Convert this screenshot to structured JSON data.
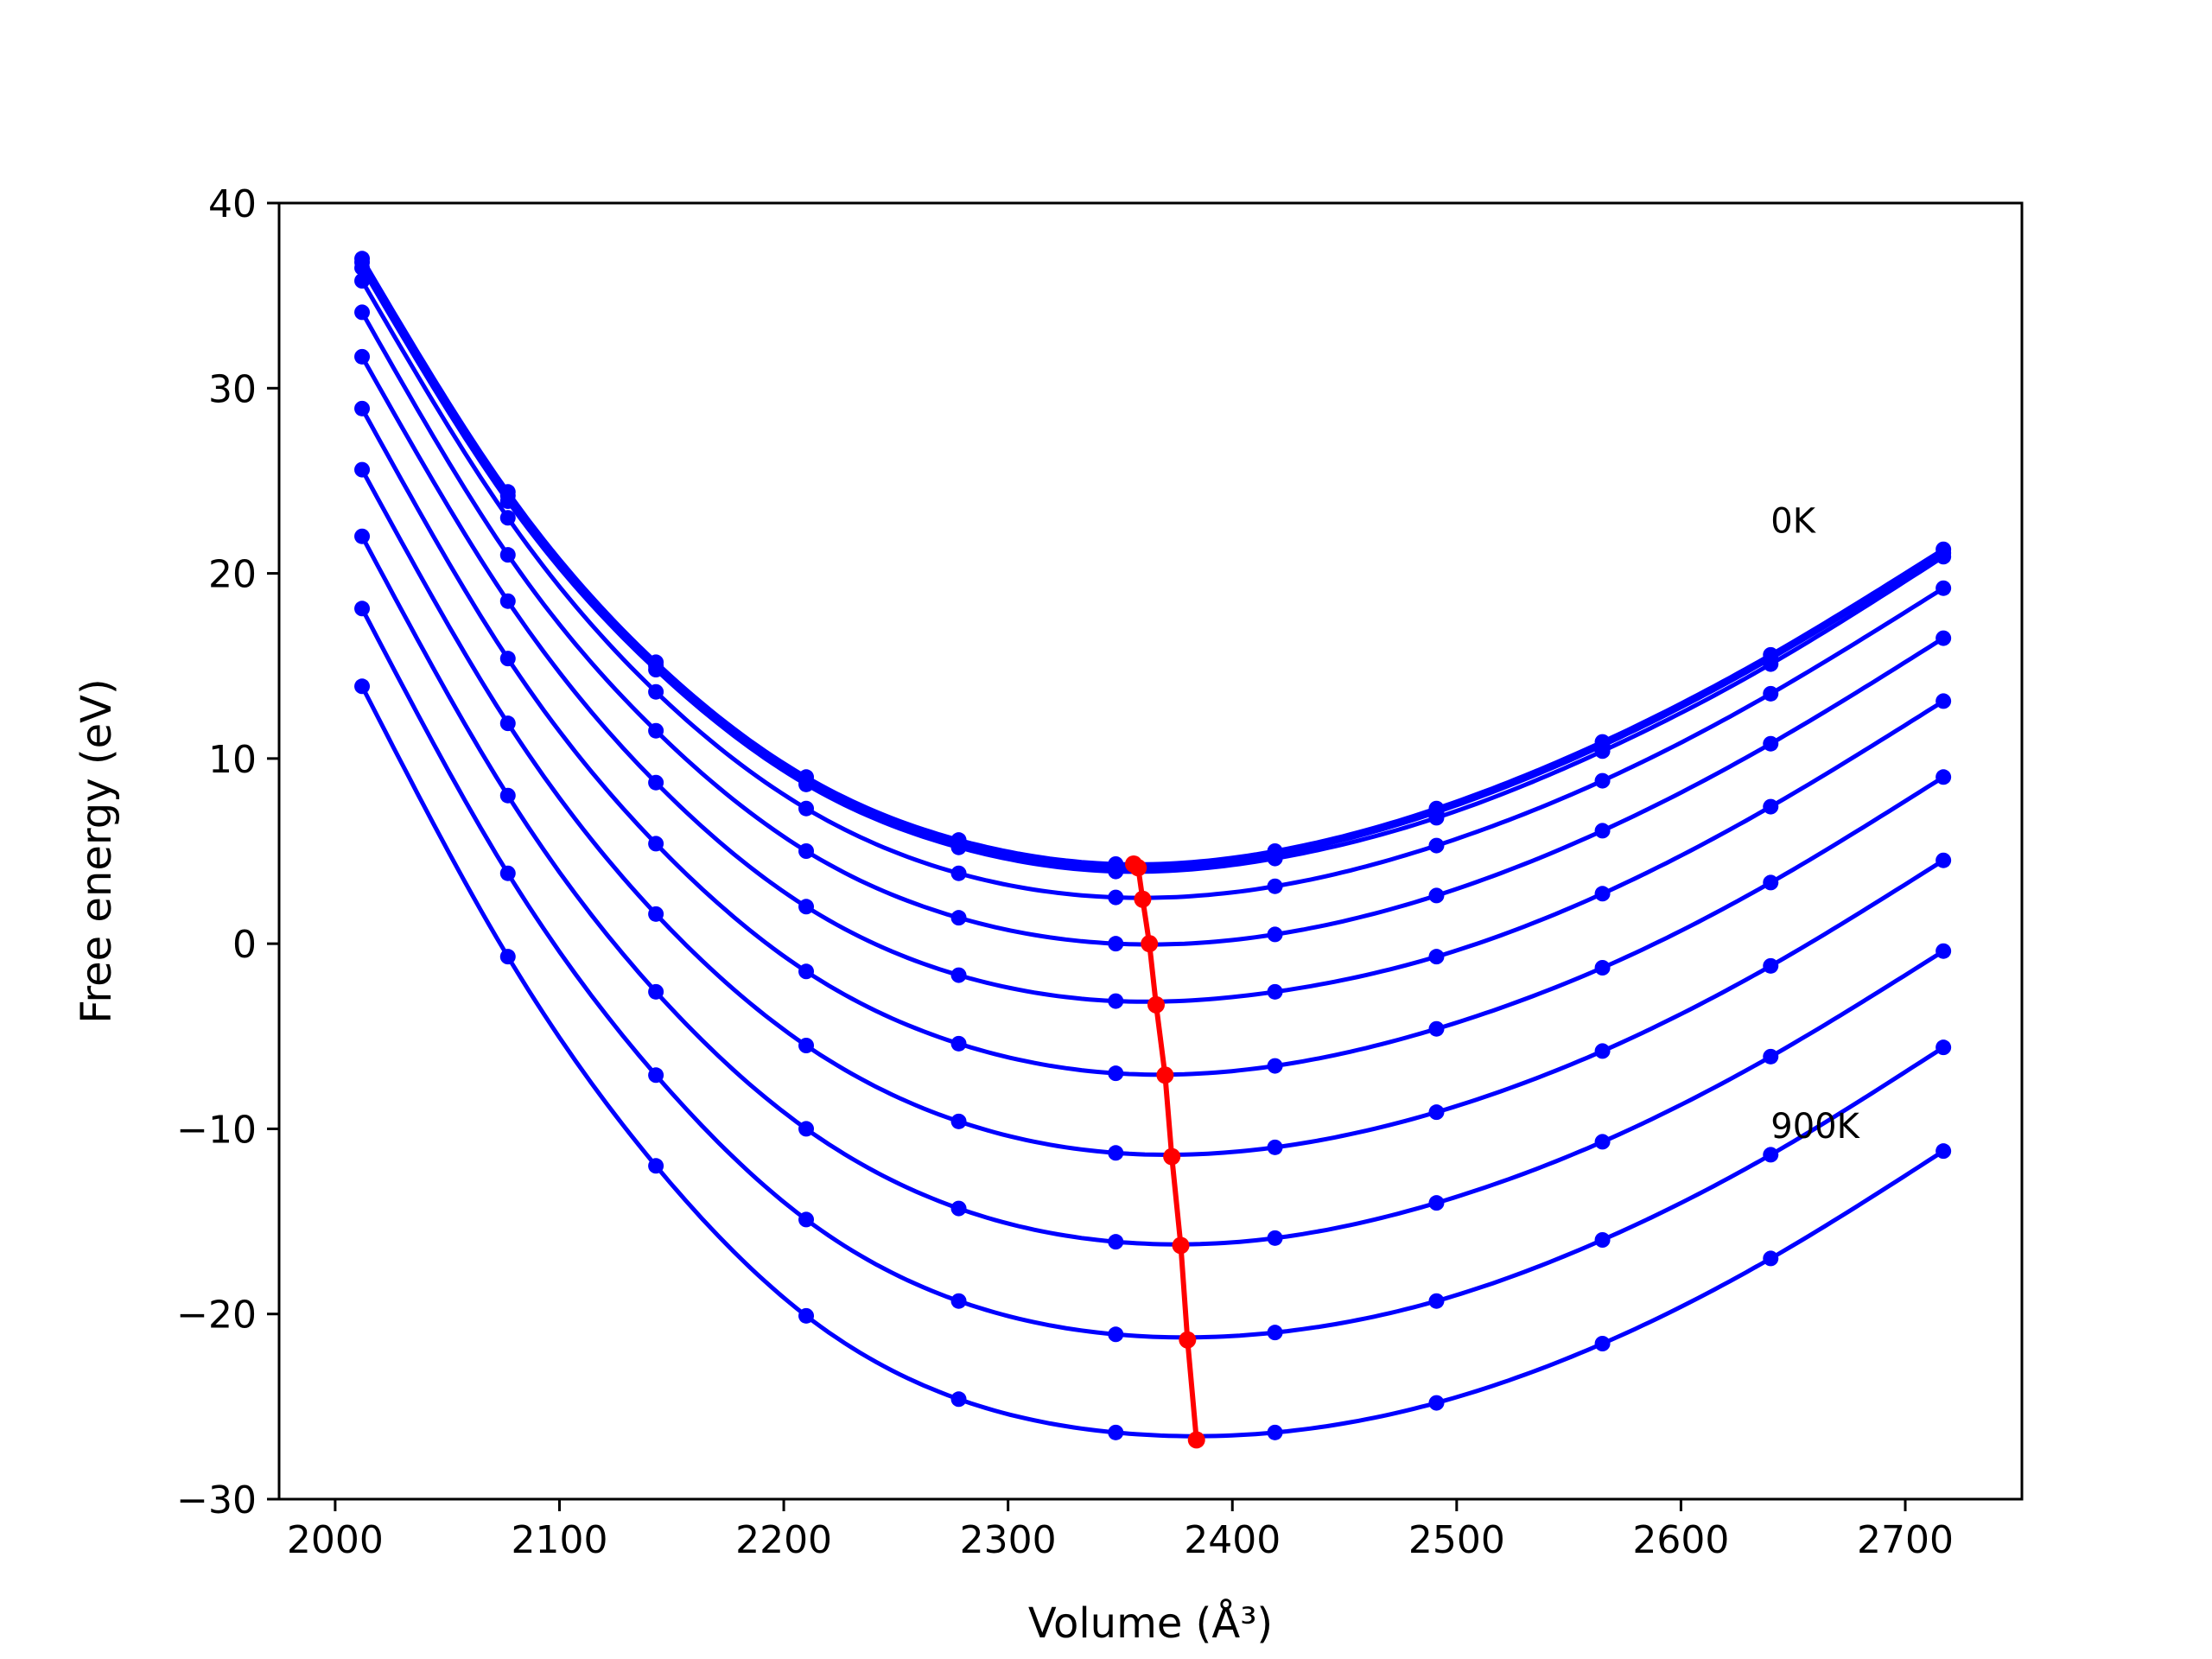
{
  "chart_data": {
    "type": "line",
    "xlabel": "Volume (Å³)",
    "ylabel": "Free energy (eV)",
    "xlim": [
      1975,
      2752
    ],
    "ylim": [
      -30,
      40
    ],
    "xticks": [
      2000,
      2100,
      2200,
      2300,
      2400,
      2500,
      2600,
      2700
    ],
    "yticks": [
      -30,
      -20,
      -10,
      0,
      10,
      20,
      30,
      40
    ],
    "xtick_labels": [
      "2000",
      "2100",
      "2200",
      "2300",
      "2400",
      "2500",
      "2600",
      "2700"
    ],
    "ytick_labels": [
      "−30",
      "−20",
      "−10",
      "0",
      "10",
      "20",
      "30",
      "40"
    ],
    "grid": false,
    "colors": {
      "isotherms": "#0000ff",
      "minimum_path": "#ff0000",
      "axes": "#000000"
    },
    "annotations": [
      {
        "text": "0K",
        "x": 2640,
        "y": 22.2
      },
      {
        "text": "900K",
        "x": 2640,
        "y": -10.5
      }
    ],
    "volumes": [
      2012,
      2077,
      2143,
      2210,
      2278,
      2348,
      2419,
      2491,
      2565,
      2640,
      2717
    ],
    "series": [
      {
        "values": [
          37.0,
          24.4,
          15.2,
          9.0,
          5.6,
          4.3,
          5.0,
          7.3,
          10.9,
          15.6,
          21.3
        ]
      },
      {
        "values": [
          36.8,
          24.2,
          15.0,
          8.8,
          5.4,
          4.1,
          4.8,
          7.1,
          10.7,
          15.4,
          21.1
        ]
      },
      {
        "values": [
          36.5,
          23.9,
          14.8,
          8.6,
          5.2,
          3.9,
          4.6,
          6.8,
          10.4,
          15.1,
          20.9
        ]
      },
      {
        "values": [
          35.8,
          23.0,
          13.6,
          7.3,
          3.8,
          2.5,
          3.1,
          5.3,
          8.8,
          13.5,
          19.2
        ]
      },
      {
        "values": [
          34.1,
          21.0,
          11.5,
          5.0,
          1.4,
          0.0,
          0.5,
          2.6,
          6.1,
          10.8,
          16.5
        ]
      },
      {
        "values": [
          31.7,
          18.5,
          8.7,
          2.0,
          -1.7,
          -3.1,
          -2.6,
          -0.7,
          2.7,
          7.4,
          13.1
        ]
      },
      {
        "values": [
          28.9,
          15.4,
          5.4,
          -1.5,
          -5.4,
          -7.0,
          -6.6,
          -4.6,
          -1.3,
          3.3,
          9.0
        ]
      },
      {
        "values": [
          25.6,
          11.9,
          1.6,
          -5.5,
          -9.6,
          -11.3,
          -11.0,
          -9.1,
          -5.8,
          -1.2,
          4.5
        ]
      },
      {
        "values": [
          22.0,
          8.0,
          -2.6,
          -10.0,
          -14.3,
          -16.1,
          -15.9,
          -14.0,
          -10.7,
          -6.1,
          -0.4
        ]
      },
      {
        "values": [
          18.1,
          3.8,
          -7.1,
          -14.9,
          -19.3,
          -21.1,
          -21.0,
          -19.3,
          -16.0,
          -11.4,
          -5.6
        ]
      },
      {
        "values": [
          13.9,
          -0.7,
          -12.0,
          -20.1,
          -24.6,
          -26.4,
          -26.4,
          -24.8,
          -21.6,
          -17.0,
          -11.2
        ]
      }
    ],
    "minimum_path": {
      "x": [
        2356,
        2358,
        2360,
        2363,
        2366,
        2370,
        2373,
        2377,
        2380,
        2384
      ],
      "y": [
        4.3,
        4.1,
        2.4,
        0.0,
        -3.3,
        -7.1,
        -11.5,
        -16.3,
        -21.4,
        -26.8
      ]
    }
  }
}
